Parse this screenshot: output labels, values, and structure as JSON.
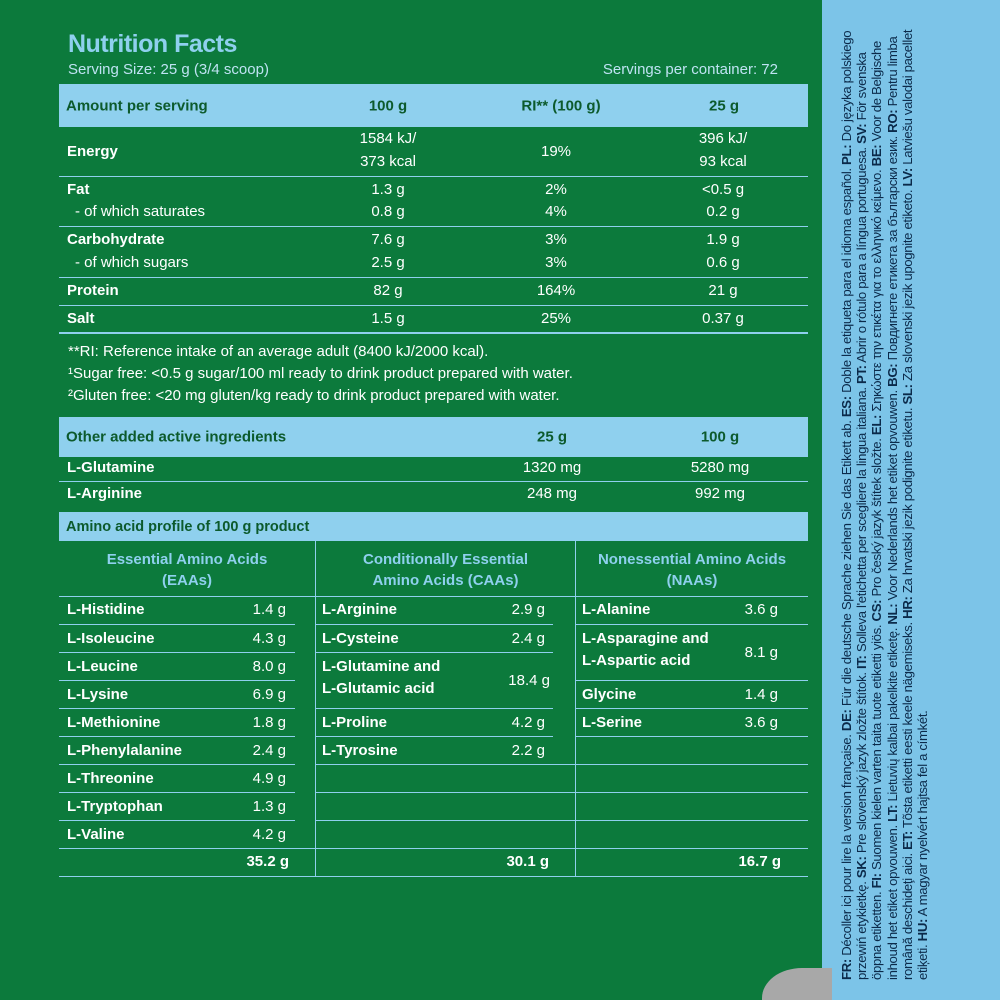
{
  "title": "Nutrition Facts",
  "serving_size": "Serving Size: 25 g (3/4 scoop)",
  "servings_per_container": "Servings per container: 72",
  "nutrition": {
    "headers": [
      "Amount per serving",
      "100 g",
      "RI** (100 g)",
      "25 g"
    ],
    "rows": [
      {
        "name": "Energy",
        "v100_line1": "1584 kJ/",
        "v100_line2": "373 kcal",
        "ri": "19%",
        "v25_line1": "396 kJ/",
        "v25_line2": "93 kcal"
      },
      {
        "name": "Fat",
        "v100": "1.3 g",
        "ri": "2%",
        "v25": "<0.5 g"
      },
      {
        "name": "- of which saturates",
        "v100": "0.8 g",
        "ri": "4%",
        "v25": "0.2 g"
      },
      {
        "name": "Carbohydrate",
        "v100": "7.6 g",
        "ri": "3%",
        "v25": "1.9 g"
      },
      {
        "name": "- of which sugars",
        "v100": "2.5 g",
        "ri": "3%",
        "v25": "0.6 g"
      },
      {
        "name": "Protein",
        "v100": "82 g",
        "ri": "164%",
        "v25": "21 g"
      },
      {
        "name": "Salt",
        "v100": "1.5 g",
        "ri": "25%",
        "v25": "0.37 g"
      }
    ]
  },
  "footnotes": [
    "**RI: Reference intake of an average adult (8400 kJ/2000 kcal).",
    "¹Sugar free: <0.5 g sugar/100 ml ready to drink product prepared with water.",
    "²Gluten free: <20 mg gluten/kg ready to drink product prepared with water."
  ],
  "active": {
    "headers": [
      "Other added active ingredients",
      "25 g",
      "100 g"
    ],
    "rows": [
      {
        "name": "L-Glutamine",
        "v25": "1320 mg",
        "v100": "5280 mg"
      },
      {
        "name": "L-Arginine",
        "v25": "248 mg",
        "v100": "992 mg"
      }
    ]
  },
  "amino": {
    "header": "Amino acid profile of 100 g product",
    "eaa": {
      "title_line1": "Essential Amino Acids",
      "title_line2": "(EAAs)",
      "items": [
        {
          "name": "L-Histidine",
          "value": "1.4 g"
        },
        {
          "name": "L-Isoleucine",
          "value": "4.3 g"
        },
        {
          "name": "L-Leucine",
          "value": "8.0 g"
        },
        {
          "name": "L-Lysine",
          "value": "6.9 g"
        },
        {
          "name": "L-Methionine",
          "value": "1.8 g"
        },
        {
          "name": "L-Phenylalanine",
          "value": "2.4 g"
        },
        {
          "name": "L-Threonine",
          "value": "4.9 g"
        },
        {
          "name": "L-Tryptophan",
          "value": "1.3 g"
        },
        {
          "name": "L-Valine",
          "value": "4.2 g"
        }
      ],
      "total": "35.2 g"
    },
    "caa": {
      "title_line1": "Conditionally Essential",
      "title_line2": "Amino Acids (CAAs)",
      "items": [
        {
          "name": "L-Arginine",
          "value": "2.9 g"
        },
        {
          "name": "L-Cysteine",
          "value": "2.4 g"
        },
        {
          "name_line1": "L-Glutamine and",
          "name_line2": "L-Glutamic acid",
          "value": "18.4 g"
        },
        {
          "name": "L-Proline",
          "value": "4.2 g"
        },
        {
          "name": "L-Tyrosine",
          "value": "2.2 g"
        }
      ],
      "total": "30.1 g"
    },
    "naa": {
      "title_line1": "Nonessential Amino Acids",
      "title_line2": "(NAAs)",
      "items": [
        {
          "name": "L-Alanine",
          "value": "3.6 g"
        },
        {
          "name_line1": "L-Asparagine and",
          "name_line2": "L-Aspartic acid",
          "value": "8.1 g"
        },
        {
          "name": "Glycine",
          "value": "1.4 g"
        },
        {
          "name": "L-Serine",
          "value": "3.6 g"
        }
      ],
      "total": "16.7 g"
    }
  },
  "side_text": [
    {
      "code": "FR:",
      "text": " Décoller ici pour lire la version française. "
    },
    {
      "code": "DE:",
      "text": " Für die deutsche Sprache ziehen Sie das Etikett ab. "
    },
    {
      "code": "ES:",
      "text": " Doble la etiqueta para el idioma español. "
    },
    {
      "code": "PL:",
      "text": " Do języka polskiego przewiń etykietkę. "
    },
    {
      "code": "SK:",
      "text": " Pre slovenský jazyk zložte štítok. "
    },
    {
      "code": "IT:",
      "text": " Solleva l'etichetta per scegliere la lingua italiana. "
    },
    {
      "code": "PT:",
      "text": " Abrir o rótulo para a língua portuguesa. "
    },
    {
      "code": "SV:",
      "text": " För svenska öppna etiketten. "
    },
    {
      "code": "FI:",
      "text": " Suomen kielen varten taita tuote etiketti yiös. "
    },
    {
      "code": "CS:",
      "text": " Pro český jazyk štítek složte. "
    },
    {
      "code": "EL:",
      "text": " Σηκώστε την ετικέτα για το ελληνικό κείμενο. "
    },
    {
      "code": "BE:",
      "text": " Voor de Belgische inhoud het etiket opvouwen. "
    },
    {
      "code": "LT:",
      "text": " Lietuvių kalbai pakelkite etiketę. "
    },
    {
      "code": "NL:",
      "text": " Voor Nederlands het etiket opvouwen. "
    },
    {
      "code": "BG:",
      "text": " Повдигнете етикета за български език. "
    },
    {
      "code": "RO:",
      "text": " Pentru limba română deschideţi aici. "
    },
    {
      "code": "ET:",
      "text": " Tõsta etiketti eesti keele nägemiseks. "
    },
    {
      "code": "HR:",
      "text": " Za hrvatski jezik podignite etiketu. "
    },
    {
      "code": "SL:",
      "text": " Za slovenski jezik upognite etiketo. "
    },
    {
      "code": "LV:",
      "text": " Latviešu valodai pacellet etiķeti. "
    },
    {
      "code": "HU:",
      "text": " A magyar nyelvért hajtsa fel a címkét."
    }
  ],
  "colors": {
    "background_green": "#0c7a3c",
    "light_blue": "#8fd0ee",
    "side_strip_blue": "#7cc4e8",
    "header_text_green": "#0c5a2c"
  }
}
